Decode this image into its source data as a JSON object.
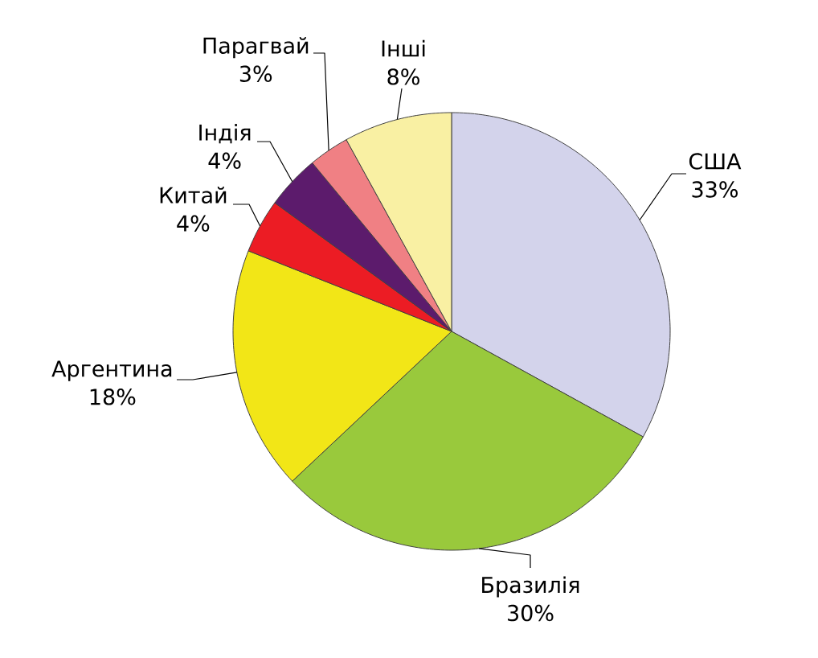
{
  "chart_data": {
    "type": "pie",
    "categories": [
      "США",
      "Бразилія",
      "Аргентина",
      "Китай",
      "Індія",
      "Парагвай",
      "Інші"
    ],
    "values": [
      33,
      30,
      18,
      4,
      4,
      3,
      8
    ],
    "value_labels": [
      "33%",
      "30%",
      "18%",
      "4%",
      "4%",
      "3%",
      "8%"
    ],
    "colors": [
      "#d3d3eb",
      "#99c93c",
      "#f2e617",
      "#ec1c24",
      "#5c1b6c",
      "#f08084",
      "#f9f0a3"
    ]
  }
}
